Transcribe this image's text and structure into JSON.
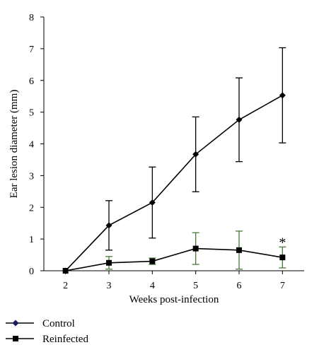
{
  "chart_data": {
    "type": "line",
    "title": "",
    "xlabel": "Weeks post-infection",
    "ylabel": "Ear lesion diameter (mm)",
    "x": [
      2,
      3,
      4,
      5,
      6,
      7
    ],
    "xlim": [
      1.5,
      7.5
    ],
    "ylim": [
      0,
      8
    ],
    "yticks": [
      0,
      1,
      2,
      3,
      4,
      5,
      6,
      7,
      8
    ],
    "grid": false,
    "legend_position": "bottom-left",
    "series": [
      {
        "name": "Control",
        "marker": "diamond",
        "line_color": "#000000",
        "marker_color": "#1a1a5e",
        "errorbar_color": "#000000",
        "values": [
          0,
          1.43,
          2.15,
          3.67,
          4.76,
          5.53
        ],
        "error": [
          0,
          0.78,
          1.12,
          1.18,
          1.32,
          1.5
        ]
      },
      {
        "name": "Reinfected",
        "marker": "square",
        "line_color": "#000000",
        "marker_color": "#000000",
        "errorbar_color": "#4a7a3a",
        "values": [
          0,
          0.25,
          0.3,
          0.7,
          0.65,
          0.42
        ],
        "error": [
          0,
          0.2,
          0.1,
          0.5,
          0.6,
          0.33
        ]
      }
    ],
    "annotations": [
      {
        "text": "*",
        "x": 7,
        "y": 0.95
      }
    ]
  }
}
